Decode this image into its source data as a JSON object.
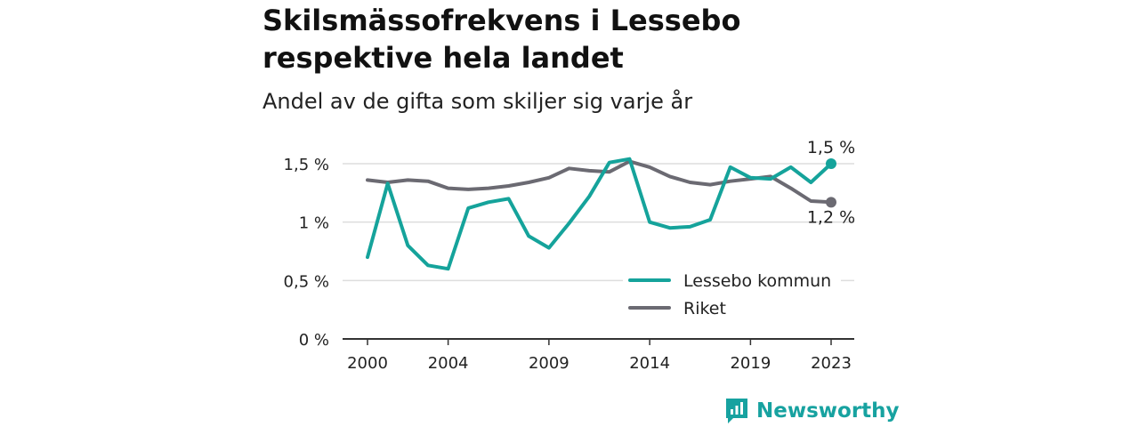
{
  "title": "Skilsmässofrekvens i Lessebo respektive hela landet",
  "subtitle": "Andel av de gifta som skiljer sig varje år",
  "brand": "Newsworthy",
  "colors": {
    "lessebo": "#15a39b",
    "riket": "#6b6a72",
    "grid": "#dddddd",
    "axis": "#333333"
  },
  "chart_data": {
    "type": "line",
    "x": [
      2000,
      2001,
      2002,
      2003,
      2004,
      2005,
      2006,
      2007,
      2008,
      2009,
      2010,
      2011,
      2012,
      2013,
      2014,
      2015,
      2016,
      2017,
      2018,
      2019,
      2020,
      2021,
      2022,
      2023
    ],
    "series": [
      {
        "name": "Lessebo kommun",
        "color": "#15a39b",
        "values": [
          0.7,
          1.33,
          0.8,
          0.63,
          0.6,
          1.12,
          1.17,
          1.2,
          0.88,
          0.78,
          0.99,
          1.22,
          1.51,
          1.54,
          1.0,
          0.95,
          0.96,
          1.02,
          1.47,
          1.38,
          1.37,
          1.47,
          1.34,
          1.5
        ],
        "end_label": "1,5 %"
      },
      {
        "name": "Riket",
        "color": "#6b6a72",
        "values": [
          1.36,
          1.34,
          1.36,
          1.35,
          1.29,
          1.28,
          1.29,
          1.31,
          1.34,
          1.38,
          1.46,
          1.44,
          1.43,
          1.52,
          1.47,
          1.39,
          1.34,
          1.32,
          1.35,
          1.37,
          1.39,
          1.29,
          1.18,
          1.17
        ],
        "end_label": "1,2 %"
      }
    ],
    "x_ticks": [
      2000,
      2004,
      2009,
      2014,
      2019,
      2023
    ],
    "y_ticks": [
      {
        "value": 0,
        "label": "0 %"
      },
      {
        "value": 0.5,
        "label": "0,5 %"
      },
      {
        "value": 1,
        "label": "1 %"
      },
      {
        "value": 1.5,
        "label": "1,5 %"
      }
    ],
    "ylim": [
      0,
      1.5
    ],
    "legend_position": "bottom-right",
    "grid": true
  }
}
